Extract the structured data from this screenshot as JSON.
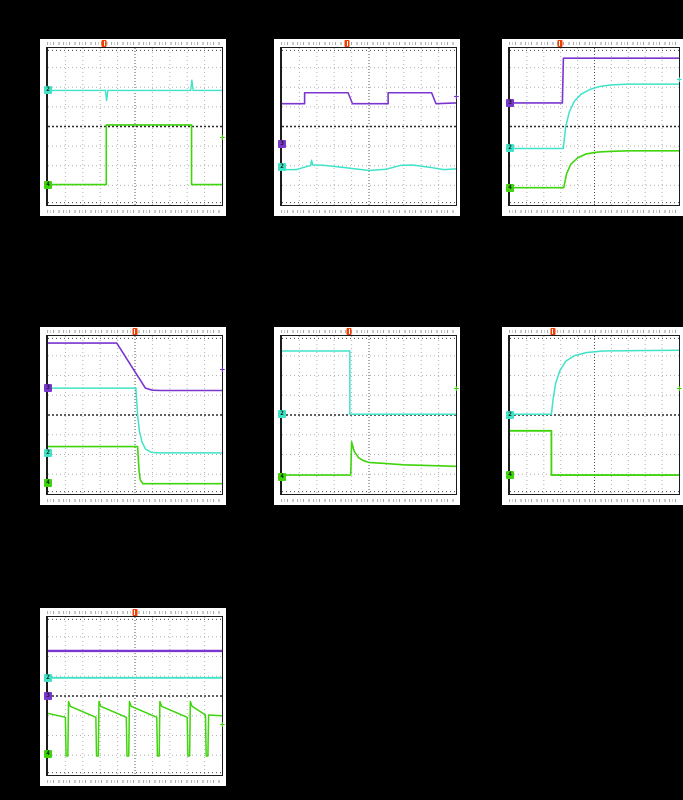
{
  "palette": {
    "page_background": "#000000",
    "scope_background": "#ffffff",
    "grid_dot": "#b0b0b0",
    "grid_center": "#2a2a2a",
    "trigger_orange": "#f43b00",
    "ch_purple": "#7a36cf",
    "ch_cyan": "#3fe3c8",
    "ch_green": "#3fd40c"
  },
  "chart_data": [
    {
      "id": "scope-1",
      "type": "line",
      "title": "",
      "grid": {
        "x_divs": 10,
        "y_divs": 8
      },
      "trigger_x": 33,
      "series": [
        {
          "name": "ch2-cyan-flat-with-glitches",
          "color": "#3fe3c8",
          "width": 1.4,
          "points": [
            [
              0,
              27
            ],
            [
              33,
              27
            ],
            [
              33.7,
              33.5
            ],
            [
              34.4,
              27
            ],
            [
              82,
              27
            ],
            [
              82.7,
              20.5
            ],
            [
              83.4,
              27
            ],
            [
              100,
              27
            ]
          ]
        },
        {
          "name": "ch4-green-square-pulse",
          "color": "#3fd40c",
          "width": 1.6,
          "points": [
            [
              0,
              87
            ],
            [
              33.5,
              87
            ],
            [
              33.5,
              49
            ],
            [
              82.5,
              49
            ],
            [
              82.5,
              87
            ],
            [
              100,
              87
            ]
          ]
        }
      ],
      "markers": [
        {
          "side": "left",
          "label": "2",
          "color": "#3fe3c8",
          "y": 27
        },
        {
          "side": "left",
          "label": "4",
          "color": "#3fd40c",
          "y": 87
        },
        {
          "side": "right",
          "label": "+",
          "color": "#3fd40c",
          "y": 58
        }
      ]
    },
    {
      "id": "scope-2",
      "type": "line",
      "title": "",
      "grid": {
        "x_divs": 10,
        "y_divs": 8
      },
      "trigger_x": 38,
      "series": [
        {
          "name": "ch3-purple-two-pulses",
          "color": "#7a36cf",
          "width": 1.6,
          "points": [
            [
              0,
              35.5
            ],
            [
              13,
              35.5
            ],
            [
              13,
              28.5
            ],
            [
              38,
              28.5
            ],
            [
              40.5,
              35.5
            ],
            [
              61,
              35.5
            ],
            [
              61,
              28.5
            ],
            [
              86,
              28.5
            ],
            [
              88.5,
              35.5
            ],
            [
              100,
              35
            ]
          ]
        },
        {
          "name": "ch2-cyan-ripple",
          "color": "#3fe3c8",
          "width": 1.5,
          "points": [
            [
              0,
              77.5
            ],
            [
              8,
              77.5
            ],
            [
              16.5,
              74.8
            ],
            [
              17,
              71.5
            ],
            [
              17.6,
              74.5
            ],
            [
              23,
              74.6
            ],
            [
              35,
              76
            ],
            [
              50,
              78
            ],
            [
              60,
              77.2
            ],
            [
              68,
              74.8
            ],
            [
              75,
              74.5
            ],
            [
              85,
              76
            ],
            [
              93,
              77.5
            ],
            [
              100,
              77
            ]
          ]
        }
      ],
      "markers": [
        {
          "side": "left",
          "label": "3",
          "color": "#7a36cf",
          "y": 61
        },
        {
          "side": "left",
          "label": "2",
          "color": "#3fe3c8",
          "y": 76
        },
        {
          "side": "right",
          "label": "+",
          "color": "#7a36cf",
          "y": 32
        }
      ]
    },
    {
      "id": "scope-3",
      "type": "line",
      "title": "",
      "grid": {
        "x_divs": 10,
        "y_divs": 8
      },
      "trigger_x": 30,
      "series": [
        {
          "name": "ch3-purple-step-up",
          "color": "#7a36cf",
          "width": 1.6,
          "points": [
            [
              0,
              35
            ],
            [
              31,
              35
            ],
            [
              31.6,
              6.5
            ],
            [
              100,
              6.5
            ]
          ]
        },
        {
          "name": "ch2-cyan-exponential-rise",
          "color": "#3fe3c8",
          "width": 1.5,
          "points": [
            [
              0,
              64
            ],
            [
              31.5,
              64
            ],
            [
              33,
              50
            ],
            [
              35,
              41
            ],
            [
              38,
              34
            ],
            [
              42,
              29.5
            ],
            [
              47,
              26.5
            ],
            [
              53,
              24.5
            ],
            [
              60,
              23.5
            ],
            [
              70,
              23
            ],
            [
              100,
              23
            ]
          ]
        },
        {
          "name": "ch4-green-exponential-rise",
          "color": "#3fd40c",
          "width": 1.6,
          "points": [
            [
              0,
              89
            ],
            [
              31.8,
              89
            ],
            [
              33.5,
              80
            ],
            [
              36,
              74
            ],
            [
              40,
              70
            ],
            [
              45,
              67.5
            ],
            [
              52,
              66.3
            ],
            [
              60,
              65.8
            ],
            [
              70,
              65.5
            ],
            [
              100,
              65.5
            ]
          ]
        }
      ],
      "markers": [
        {
          "side": "left",
          "label": "3",
          "color": "#7a36cf",
          "y": 35
        },
        {
          "side": "left",
          "label": "2",
          "color": "#3fe3c8",
          "y": 64
        },
        {
          "side": "left",
          "label": "4",
          "color": "#3fd40c",
          "y": 89
        },
        {
          "side": "right",
          "label": "+",
          "color": "#3fe3c8",
          "y": 21
        }
      ]
    },
    {
      "id": "scope-4",
      "type": "line",
      "title": "",
      "grid": {
        "x_divs": 10,
        "y_divs": 8
      },
      "trigger_x": 50,
      "series": [
        {
          "name": "ch1-purple-ramp-down",
          "color": "#7a36cf",
          "width": 1.6,
          "points": [
            [
              0,
              4.5
            ],
            [
              39.5,
              4.5
            ],
            [
              56,
              33
            ],
            [
              60,
              34.3
            ],
            [
              65,
              34.5
            ],
            [
              100,
              34.5
            ]
          ]
        },
        {
          "name": "ch2-cyan-fall",
          "color": "#3fe3c8",
          "width": 1.5,
          "points": [
            [
              0,
              33
            ],
            [
              50.5,
              33
            ],
            [
              51.5,
              50
            ],
            [
              52.5,
              60
            ],
            [
              54,
              67
            ],
            [
              56,
              71.5
            ],
            [
              59,
              73.5
            ],
            [
              63,
              74
            ],
            [
              100,
              74
            ]
          ]
        },
        {
          "name": "ch4-green-fall",
          "color": "#3fd40c",
          "width": 1.6,
          "points": [
            [
              0,
              70
            ],
            [
              51.5,
              70
            ],
            [
              52.3,
              85
            ],
            [
              53,
              91
            ],
            [
              54.5,
              93.5
            ],
            [
              100,
              93.5
            ]
          ]
        }
      ],
      "markers": [
        {
          "side": "left",
          "label": "3",
          "color": "#7a36cf",
          "y": 33
        },
        {
          "side": "left",
          "label": "2",
          "color": "#3fe3c8",
          "y": 74
        },
        {
          "side": "left",
          "label": "4",
          "color": "#3fd40c",
          "y": 93
        },
        {
          "side": "right",
          "label": "+",
          "color": "#7a36cf",
          "y": 22
        }
      ]
    },
    {
      "id": "scope-5",
      "type": "line",
      "title": "",
      "grid": {
        "x_divs": 10,
        "y_divs": 8
      },
      "trigger_x": 39,
      "series": [
        {
          "name": "ch2-cyan-step-down",
          "color": "#3fe3c8",
          "width": 1.5,
          "points": [
            [
              0,
              9.5
            ],
            [
              39,
              9.5
            ],
            [
              39,
              49.5
            ],
            [
              100,
              49.5
            ]
          ]
        },
        {
          "name": "ch4-green-spike-decay",
          "color": "#3fd40c",
          "width": 1.6,
          "points": [
            [
              0,
              88
            ],
            [
              39.5,
              88
            ],
            [
              40,
              67
            ],
            [
              41.5,
              73
            ],
            [
              44,
              77
            ],
            [
              47,
              79
            ],
            [
              50,
              80
            ],
            [
              70,
              81.5
            ],
            [
              100,
              82.5
            ]
          ]
        }
      ],
      "markers": [
        {
          "side": "left",
          "label": "2",
          "color": "#3fe3c8",
          "y": 49.5
        },
        {
          "side": "left",
          "label": "4",
          "color": "#3fd40c",
          "y": 89
        },
        {
          "side": "right",
          "label": "+",
          "color": "#3fd40c",
          "y": 34
        }
      ]
    },
    {
      "id": "scope-6",
      "type": "line",
      "title": "",
      "grid": {
        "x_divs": 10,
        "y_divs": 8
      },
      "trigger_x": 26,
      "series": [
        {
          "name": "ch2-cyan-exponential-rise",
          "color": "#3fe3c8",
          "width": 1.5,
          "points": [
            [
              0,
              49.5
            ],
            [
              24.5,
              49.5
            ],
            [
              25.5,
              40
            ],
            [
              27,
              30
            ],
            [
              29.5,
              22
            ],
            [
              33,
              16
            ],
            [
              38,
              12.5
            ],
            [
              45,
              10.5
            ],
            [
              55,
              9.5
            ],
            [
              100,
              9
            ]
          ]
        },
        {
          "name": "ch4-green-step-down",
          "color": "#3fd40c",
          "width": 1.8,
          "points": [
            [
              0,
              60
            ],
            [
              24.5,
              60
            ],
            [
              24.5,
              88
            ],
            [
              100,
              88
            ]
          ]
        }
      ],
      "markers": [
        {
          "side": "left",
          "label": "2",
          "color": "#3fe3c8",
          "y": 50
        },
        {
          "side": "left",
          "label": "4",
          "color": "#3fd40c",
          "y": 88
        },
        {
          "side": "right",
          "label": "+",
          "color": "#3fd40c",
          "y": 34
        }
      ]
    },
    {
      "id": "scope-7",
      "type": "line",
      "title": "",
      "grid": {
        "x_divs": 10,
        "y_divs": 8
      },
      "trigger_x": 50,
      "series": [
        {
          "name": "ch3-purple-flat-band",
          "color": "#7a36cf",
          "width": 2.4,
          "points": [
            [
              0,
              21.5
            ],
            [
              100,
              21.5
            ]
          ]
        },
        {
          "name": "ch2-cyan-flat-band",
          "color": "#3fe3c8",
          "width": 1.8,
          "points": [
            [
              0,
              38.5
            ],
            [
              100,
              38.5
            ]
          ]
        },
        {
          "name": "ch4-green-pfm-ripple",
          "color": "#3fd40c",
          "width": 1.5,
          "points": [
            [
              0,
              61
            ],
            [
              10,
              63.5
            ],
            [
              10.4,
              88
            ],
            [
              11.4,
              88
            ],
            [
              11.8,
              53.5
            ],
            [
              12.8,
              56.5
            ],
            [
              27.5,
              63.5
            ],
            [
              27.9,
              88
            ],
            [
              28.9,
              88
            ],
            [
              29.3,
              53.5
            ],
            [
              30.3,
              56.5
            ],
            [
              45,
              63.5
            ],
            [
              45.4,
              88
            ],
            [
              46.4,
              88
            ],
            [
              46.8,
              53.5
            ],
            [
              47.8,
              56.5
            ],
            [
              62.5,
              63.5
            ],
            [
              62.9,
              88
            ],
            [
              63.9,
              88
            ],
            [
              64.3,
              53.5
            ],
            [
              65.3,
              56.5
            ],
            [
              80,
              63.5
            ],
            [
              80.4,
              88
            ],
            [
              81.4,
              88
            ],
            [
              81.8,
              53.5
            ],
            [
              82.8,
              56.5
            ],
            [
              90.5,
              62
            ],
            [
              90.9,
              88
            ],
            [
              91.9,
              88
            ],
            [
              92.3,
              62
            ],
            [
              100,
              62.5
            ]
          ]
        }
      ],
      "markers": [
        {
          "side": "left",
          "label": "2",
          "color": "#3fe3c8",
          "y": 38.5
        },
        {
          "side": "left",
          "label": "3",
          "color": "#7a36cf",
          "y": 50
        },
        {
          "side": "left",
          "label": "4",
          "color": "#3fd40c",
          "y": 87
        },
        {
          "side": "right",
          "label": "+",
          "color": "#3fd40c",
          "y": 69
        }
      ]
    }
  ]
}
